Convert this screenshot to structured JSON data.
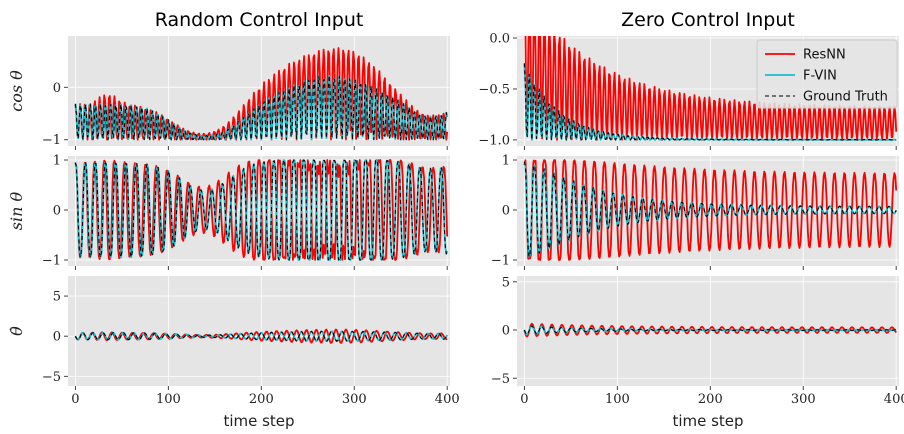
{
  "chart_data": [
    {
      "type": "line",
      "title": "Random Control Input",
      "ylabel": "cos θ",
      "xlabel": "",
      "xlim": [
        -8,
        403
      ],
      "ylim": [
        -1.12,
        0.98
      ],
      "xticks": [
        0,
        100,
        200,
        300,
        400
      ],
      "xtick_labels": [],
      "yticks": [
        -1,
        0
      ],
      "ytick_labels": [
        "−1",
        "0"
      ],
      "grid": true,
      "series": [
        {
          "name": "ResNN",
          "color": "#ff0000",
          "signal": "cos_random_resnn"
        },
        {
          "name": "F-VIN",
          "color": "#17becf",
          "signal": "cos_random_truth"
        },
        {
          "name": "Ground Truth",
          "color": "#000000",
          "dash": "4,3",
          "signal": "cos_random_truth"
        }
      ]
    },
    {
      "type": "line",
      "title": "",
      "ylabel": "sin θ",
      "xlabel": "",
      "xlim": [
        -8,
        403
      ],
      "ylim": [
        -1.12,
        1.08
      ],
      "xticks": [
        0,
        100,
        200,
        300,
        400
      ],
      "xtick_labels": [],
      "yticks": [
        -1,
        0,
        1
      ],
      "ytick_labels": [
        "−1",
        "0",
        "1"
      ],
      "grid": true,
      "series": [
        {
          "name": "ResNN",
          "color": "#ff0000",
          "signal": "sin_random_resnn"
        },
        {
          "name": "F-VIN",
          "color": "#17becf",
          "signal": "sin_random_truth"
        },
        {
          "name": "Ground Truth",
          "color": "#000000",
          "dash": "4,3",
          "signal": "sin_random_truth"
        }
      ]
    },
    {
      "type": "line",
      "title": "",
      "ylabel": "θ̇",
      "xlabel": "time step",
      "xlim": [
        -8,
        403
      ],
      "ylim": [
        -6.2,
        7.5
      ],
      "xticks": [
        0,
        100,
        200,
        300,
        400
      ],
      "xtick_labels": [
        "0",
        "100",
        "200",
        "300",
        "400"
      ],
      "yticks": [
        -5,
        0,
        5
      ],
      "ytick_labels": [
        "−5",
        "0",
        "5"
      ],
      "grid": true,
      "series": [
        {
          "name": "ResNN",
          "color": "#ff0000",
          "signal": "dot_random_resnn"
        },
        {
          "name": "F-VIN",
          "color": "#17becf",
          "signal": "dot_random_truth"
        },
        {
          "name": "Ground Truth",
          "color": "#000000",
          "dash": "4,3",
          "signal": "dot_random_truth"
        }
      ]
    },
    {
      "type": "line",
      "title": "Zero Control Input",
      "ylabel": "",
      "xlabel": "",
      "xlim": [
        -8,
        403
      ],
      "ylim": [
        -1.06,
        0.02
      ],
      "xticks": [
        0,
        100,
        200,
        300,
        400
      ],
      "xtick_labels": [],
      "yticks": [
        -1.0,
        -0.5,
        0.0
      ],
      "ytick_labels": [
        "−1.0",
        "−0.5",
        "0.0"
      ],
      "grid": true,
      "legend": "top-right",
      "series": [
        {
          "name": "ResNN",
          "color": "#ff0000",
          "signal": "cos_zero_resnn"
        },
        {
          "name": "F-VIN",
          "color": "#17becf",
          "signal": "cos_zero_truth"
        },
        {
          "name": "Ground Truth",
          "color": "#000000",
          "dash": "4,3",
          "signal": "cos_zero_truth"
        }
      ]
    },
    {
      "type": "line",
      "title": "",
      "ylabel": "",
      "xlabel": "",
      "xlim": [
        -8,
        403
      ],
      "ylim": [
        -1.12,
        1.08
      ],
      "xticks": [
        0,
        100,
        200,
        300,
        400
      ],
      "xtick_labels": [],
      "yticks": [
        -1,
        0,
        1
      ],
      "ytick_labels": [
        "−1",
        "0",
        "1"
      ],
      "grid": true,
      "series": [
        {
          "name": "ResNN",
          "color": "#ff0000",
          "signal": "sin_zero_resnn"
        },
        {
          "name": "F-VIN",
          "color": "#17becf",
          "signal": "sin_zero_truth"
        },
        {
          "name": "Ground Truth",
          "color": "#000000",
          "dash": "4,3",
          "signal": "sin_zero_truth"
        }
      ]
    },
    {
      "type": "line",
      "title": "",
      "ylabel": "",
      "xlabel": "time step",
      "xlim": [
        -8,
        403
      ],
      "ylim": [
        -5.8,
        5.6
      ],
      "xticks": [
        0,
        100,
        200,
        300,
        400
      ],
      "xtick_labels": [
        "0",
        "100",
        "200",
        "300",
        "400"
      ],
      "yticks": [
        -5,
        0,
        5
      ],
      "ytick_labels": [
        "−5",
        "0",
        "5"
      ],
      "grid": true,
      "series": [
        {
          "name": "ResNN",
          "color": "#ff0000",
          "signal": "dot_zero_resnn"
        },
        {
          "name": "F-VIN",
          "color": "#17becf",
          "signal": "dot_zero_truth"
        },
        {
          "name": "Ground Truth",
          "color": "#000000",
          "dash": "4,3",
          "signal": "dot_zero_truth"
        }
      ]
    }
  ],
  "legend": {
    "entries": [
      {
        "label": "ResNN",
        "color": "#ff0000"
      },
      {
        "label": "F-VIN",
        "color": "#17becf"
      },
      {
        "label": "Ground Truth",
        "color": "#000000",
        "dash": "4,3"
      }
    ]
  },
  "colors": {
    "plot_bg": "#e5e5e5",
    "grid": "#ffffff",
    "resnn": "#ff0000",
    "fvin": "#17becf",
    "truth": "#000000"
  }
}
